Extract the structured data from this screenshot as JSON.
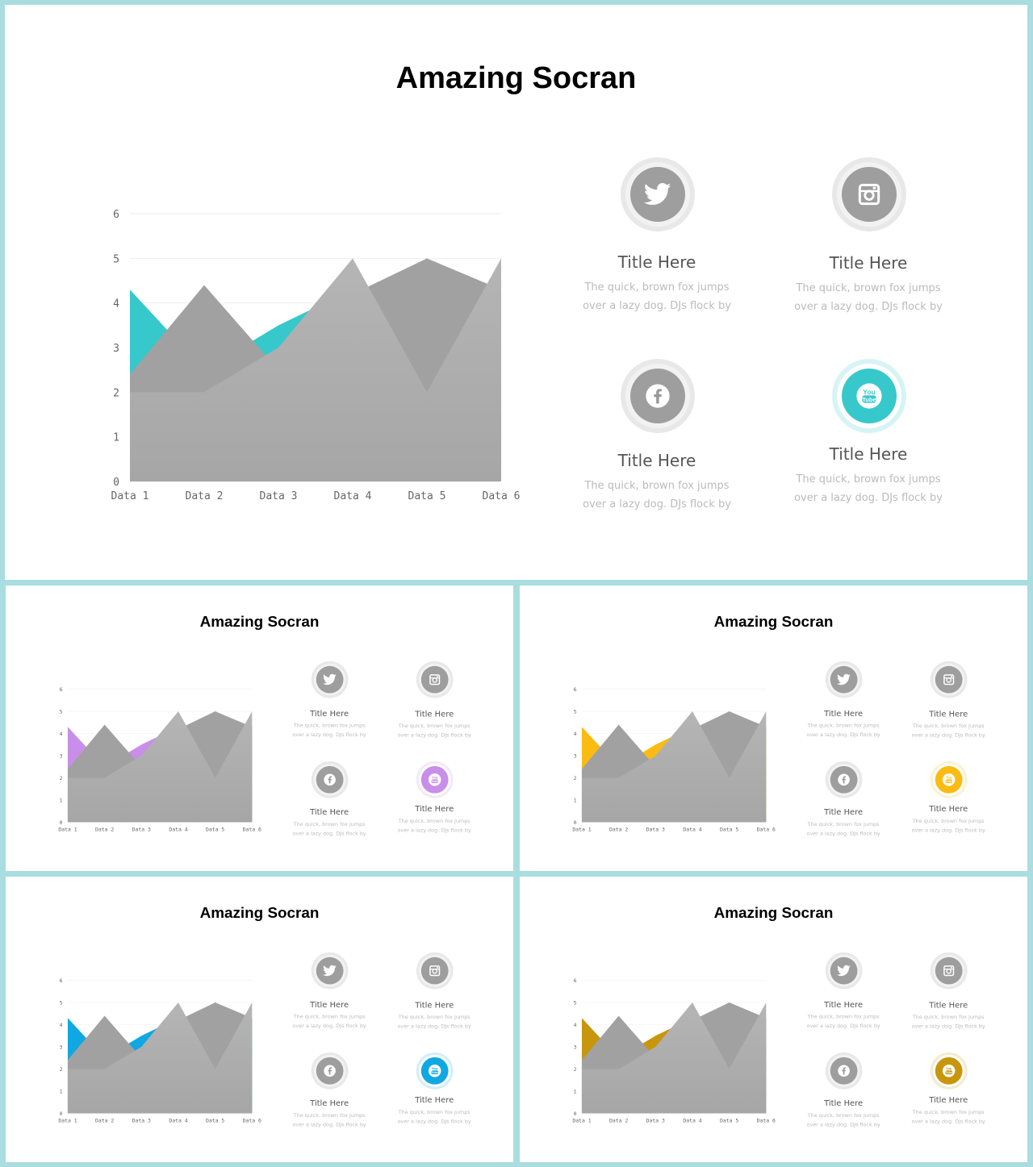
{
  "slides": [
    {
      "title": "Amazing Socran",
      "accent": "#37c8cc"
    },
    {
      "title": "Amazing Socran",
      "accent": "#c98ee9"
    },
    {
      "title": "Amazing Socran",
      "accent": "#fbbb12"
    },
    {
      "title": "Amazing Socran",
      "accent": "#10a8e3"
    },
    {
      "title": "Amazing Socran",
      "accent": "#c8960c"
    }
  ],
  "items": [
    {
      "title": "Title Here",
      "desc": "The quick, brown fox jumps over a lazy dog. DJs flock by",
      "icon": "twitter-icon"
    },
    {
      "title": "Title Here",
      "desc": "The quick, brown fox jumps over a lazy dog. DJs flock by",
      "icon": "instagram-icon"
    },
    {
      "title": "Title Here",
      "desc": "The quick, brown fox jumps over a lazy dog. DJs flock by",
      "icon": "facebook-icon"
    },
    {
      "title": "Title Here",
      "desc": "The quick, brown fox jumps over a lazy dog. DJs flock by",
      "icon": "youtube-icon"
    }
  ],
  "chart_data": {
    "type": "area",
    "categories": [
      "Data 1",
      "Data 2",
      "Data 3",
      "Data 4",
      "Data 5",
      "Data 6"
    ],
    "series": [
      {
        "values": [
          4.3,
          2.5,
          3.5,
          4.3,
          3.5,
          4.3
        ]
      },
      {
        "values": [
          2.4,
          4.4,
          2.5,
          4.2,
          5.0,
          4.3
        ]
      },
      {
        "values": [
          2.0,
          2.0,
          3.0,
          5.0,
          2.0,
          5.0
        ]
      }
    ],
    "ylim": [
      0,
      6
    ],
    "yticks": [
      "0",
      "1",
      "2",
      "3",
      "4",
      "5",
      "6"
    ],
    "grid": true
  }
}
